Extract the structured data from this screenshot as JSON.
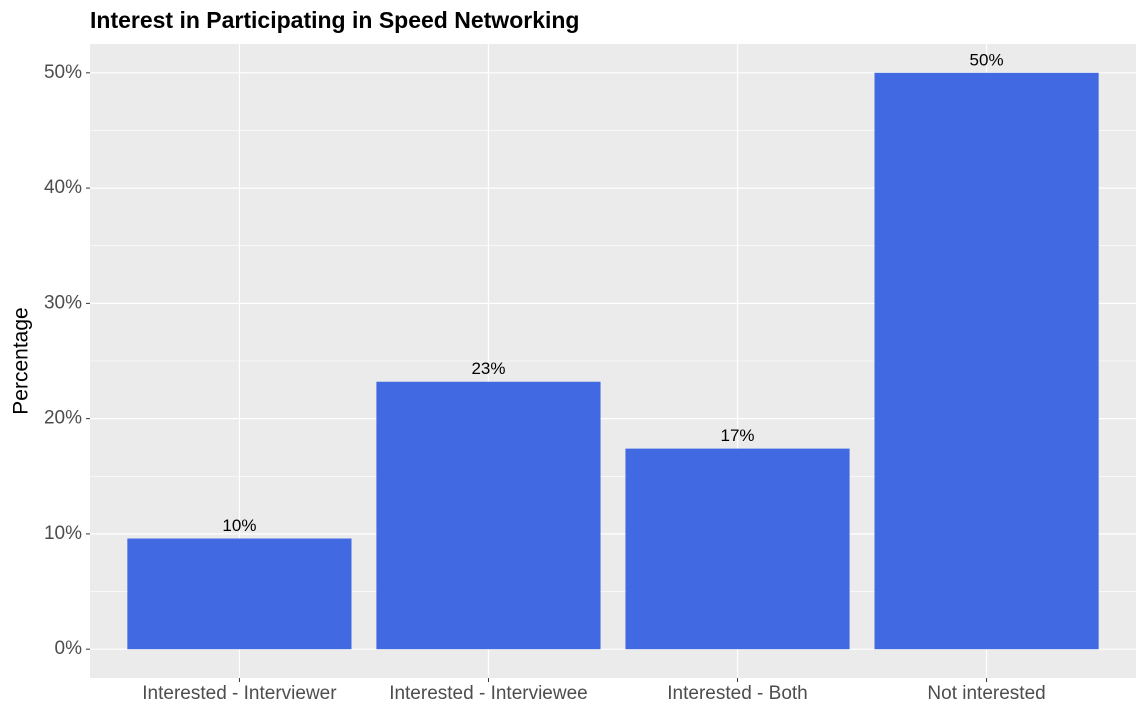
{
  "chart_data": {
    "type": "bar",
    "title": "Interest in Participating in Speed Networking",
    "y_label": "Percentage",
    "categories": [
      "Interested - Interviewer",
      "Interested - Interviewee",
      "Interested - Both",
      "Not interested"
    ],
    "values": [
      9.6,
      23.2,
      17.4,
      50
    ],
    "value_labels": [
      "10%",
      "23%",
      "17%",
      "50%"
    ],
    "color": "#4169e1",
    "ylim": [
      -2.5,
      52.5
    ],
    "yticks": [
      {
        "value": 0,
        "label": "0%"
      },
      {
        "value": 10,
        "label": "10%"
      },
      {
        "value": 20,
        "label": "20%"
      },
      {
        "value": 30,
        "label": "30%"
      },
      {
        "value": 40,
        "label": "40%"
      },
      {
        "value": 50,
        "label": "50%"
      }
    ],
    "grid": true
  }
}
